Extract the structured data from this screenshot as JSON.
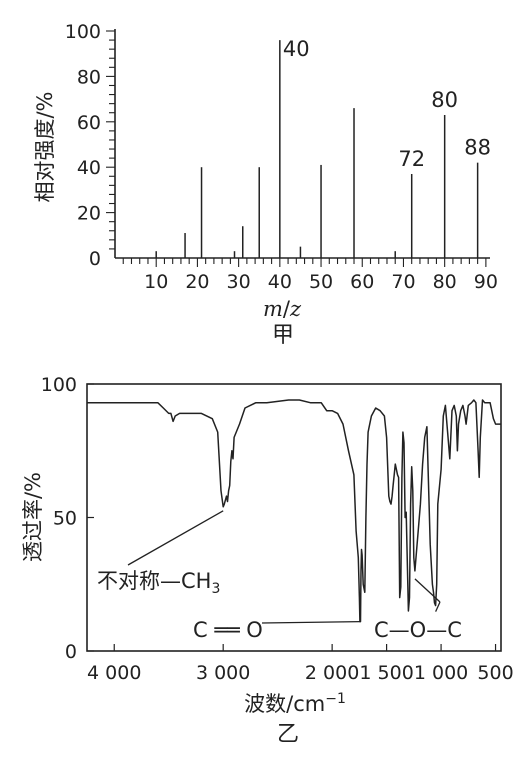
{
  "chart_data": [
    {
      "type": "bar",
      "caption": "甲",
      "ylabel": "相对强度/%",
      "xlabel": {
        "m": "m",
        "slash": "/",
        "z": "z"
      },
      "xlim": [
        0,
        91
      ],
      "ylim": [
        0,
        100
      ],
      "x_ticks": [
        "10",
        "20",
        "30",
        "40",
        "50",
        "60",
        "70",
        "80",
        "90"
      ],
      "y_ticks": [
        "0",
        "20",
        "40",
        "60",
        "80",
        "100"
      ],
      "peaks": [
        {
          "x": 10,
          "y": 3
        },
        {
          "x": 17,
          "y": 11
        },
        {
          "x": 21,
          "y": 40
        },
        {
          "x": 29,
          "y": 3
        },
        {
          "x": 31,
          "y": 14
        },
        {
          "x": 35,
          "y": 40
        },
        {
          "x": 40,
          "y": 96,
          "label": "40"
        },
        {
          "x": 45,
          "y": 5
        },
        {
          "x": 50,
          "y": 41
        },
        {
          "x": 58,
          "y": 66
        },
        {
          "x": 68,
          "y": 3
        },
        {
          "x": 72,
          "y": 37,
          "label": "72"
        },
        {
          "x": 80,
          "y": 63,
          "label": "80"
        },
        {
          "x": 88,
          "y": 42,
          "label": "88"
        }
      ]
    },
    {
      "type": "line",
      "caption": "乙",
      "ylabel": "透过率/%",
      "xlabel": {
        "text": "波数/cm",
        "sup": "−1"
      },
      "xlim": [
        4250,
        450
      ],
      "ylim": [
        0,
        100
      ],
      "x_ticks": [
        "4 000",
        "3 000",
        "2 000",
        "1 500",
        "1 000",
        "500"
      ],
      "y_ticks": [
        "0",
        "50",
        "100"
      ],
      "x_tick_values": [
        4000,
        3000,
        2000,
        1500,
        1000,
        500
      ],
      "annotations": [
        {
          "text": "不对称—CH",
          "sub": "3",
          "target": [
            3000,
            54
          ]
        },
        {
          "text": "C ══ O",
          "target": [
            1740,
            11
          ]
        },
        {
          "text": "C—O—C",
          "targets": [
            [
              1240,
              30
            ],
            [
              1050,
              17
            ]
          ]
        }
      ],
      "spectrum": [
        [
          4250,
          93
        ],
        [
          4000,
          93
        ],
        [
          3800,
          93
        ],
        [
          3600,
          93
        ],
        [
          3550,
          91
        ],
        [
          3500,
          89
        ],
        [
          3480,
          89
        ],
        [
          3460,
          86
        ],
        [
          3440,
          88
        ],
        [
          3400,
          89
        ],
        [
          3200,
          89
        ],
        [
          3100,
          87
        ],
        [
          3050,
          82
        ],
        [
          3020,
          60
        ],
        [
          3000,
          54
        ],
        [
          2990,
          55
        ],
        [
          2970,
          58
        ],
        [
          2960,
          56
        ],
        [
          2950,
          60
        ],
        [
          2940,
          62
        ],
        [
          2930,
          71
        ],
        [
          2920,
          75
        ],
        [
          2910,
          72
        ],
        [
          2900,
          80
        ],
        [
          2850,
          85
        ],
        [
          2800,
          91
        ],
        [
          2700,
          93
        ],
        [
          2600,
          93
        ],
        [
          2400,
          94
        ],
        [
          2300,
          94
        ],
        [
          2200,
          93
        ],
        [
          2100,
          93
        ],
        [
          2050,
          90
        ],
        [
          2000,
          90
        ],
        [
          1950,
          89
        ],
        [
          1900,
          85
        ],
        [
          1850,
          75
        ],
        [
          1800,
          66
        ],
        [
          1780,
          45
        ],
        [
          1760,
          35
        ],
        [
          1750,
          20
        ],
        [
          1745,
          11
        ],
        [
          1740,
          11
        ],
        [
          1735,
          30
        ],
        [
          1730,
          38
        ],
        [
          1725,
          36
        ],
        [
          1715,
          25
        ],
        [
          1700,
          22
        ],
        [
          1690,
          50
        ],
        [
          1680,
          70
        ],
        [
          1670,
          82
        ],
        [
          1660,
          84
        ],
        [
          1640,
          88
        ],
        [
          1600,
          91
        ],
        [
          1560,
          90
        ],
        [
          1520,
          88
        ],
        [
          1500,
          80
        ],
        [
          1480,
          58
        ],
        [
          1470,
          56
        ],
        [
          1460,
          55
        ],
        [
          1450,
          58
        ],
        [
          1440,
          62
        ],
        [
          1430,
          66
        ],
        [
          1420,
          70
        ],
        [
          1410,
          68
        ],
        [
          1400,
          66
        ],
        [
          1390,
          65
        ],
        [
          1380,
          20
        ],
        [
          1370,
          24
        ],
        [
          1360,
          65
        ],
        [
          1350,
          82
        ],
        [
          1340,
          78
        ],
        [
          1330,
          50
        ],
        [
          1320,
          52
        ],
        [
          1300,
          15
        ],
        [
          1290,
          20
        ],
        [
          1280,
          55
        ],
        [
          1270,
          69
        ],
        [
          1260,
          60
        ],
        [
          1250,
          35
        ],
        [
          1240,
          30
        ],
        [
          1230,
          35
        ],
        [
          1210,
          45
        ],
        [
          1190,
          55
        ],
        [
          1170,
          70
        ],
        [
          1150,
          80
        ],
        [
          1130,
          84
        ],
        [
          1100,
          40
        ],
        [
          1080,
          25
        ],
        [
          1070,
          22
        ],
        [
          1060,
          18
        ],
        [
          1050,
          17
        ],
        [
          1040,
          25
        ],
        [
          1030,
          55
        ],
        [
          1000,
          68
        ],
        [
          980,
          88
        ],
        [
          960,
          92
        ],
        [
          940,
          82
        ],
        [
          920,
          72
        ],
        [
          900,
          90
        ],
        [
          880,
          92
        ],
        [
          860,
          88
        ],
        [
          850,
          75
        ],
        [
          840,
          85
        ],
        [
          820,
          90
        ],
        [
          800,
          92
        ],
        [
          780,
          88
        ],
        [
          770,
          85
        ],
        [
          750,
          92
        ],
        [
          720,
          93
        ],
        [
          700,
          94
        ],
        [
          680,
          93
        ],
        [
          660,
          75
        ],
        [
          650,
          65
        ],
        [
          640,
          80
        ],
        [
          620,
          94
        ],
        [
          600,
          93
        ],
        [
          550,
          93
        ],
        [
          520,
          87
        ],
        [
          500,
          85
        ],
        [
          450,
          85
        ]
      ]
    }
  ]
}
